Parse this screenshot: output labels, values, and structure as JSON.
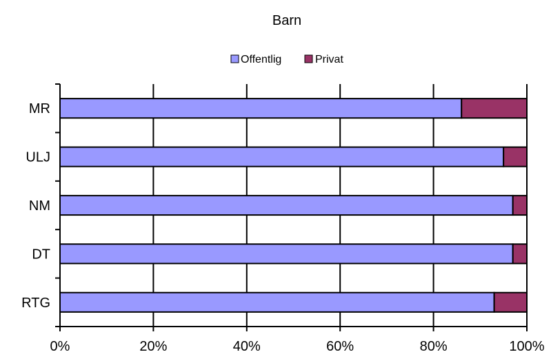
{
  "chart_data": {
    "type": "bar",
    "orientation": "horizontal",
    "stacked": "percent",
    "title": "Barn",
    "categories": [
      "MR",
      "ULJ",
      "NM",
      "DT",
      "RTG"
    ],
    "series": [
      {
        "name": "Offentlig",
        "color": "#9999ff",
        "values": [
          86,
          95,
          97,
          97,
          93
        ]
      },
      {
        "name": "Privat",
        "color": "#993366",
        "values": [
          14,
          5,
          3,
          3,
          7
        ]
      }
    ],
    "x_ticks": [
      "0%",
      "20%",
      "40%",
      "60%",
      "80%",
      "100%"
    ],
    "xlim": [
      0,
      100
    ],
    "xlabel": "",
    "ylabel": "",
    "grid": "vertical",
    "legend_position": "top"
  }
}
